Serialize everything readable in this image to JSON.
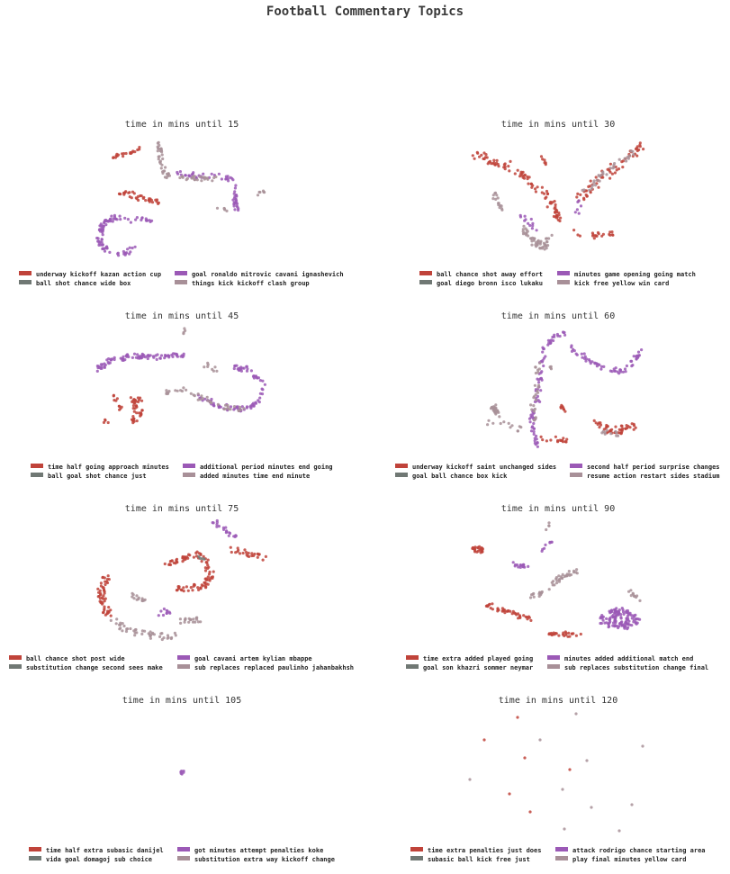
{
  "figure": {
    "title": "Football Commentary Topics"
  },
  "colors": {
    "red": "#c0433a",
    "grey": "#707874",
    "purple": "#9b59b6",
    "mauve": "#a89098"
  },
  "chart_data": [
    {
      "type": "scatter",
      "title": "time in mins until 15",
      "legend": [
        "underway kickoff kazan action cup",
        "ball shot chance wide box",
        "goal ronaldo mitrovic cavani ignashevich",
        "things kick kickoff clash group"
      ]
    },
    {
      "type": "scatter",
      "title": "time in mins until 30",
      "legend": [
        "ball chance shot away effort",
        "goal diego bronn isco lukaku",
        "minutes game opening going match",
        "kick free yellow win card"
      ]
    },
    {
      "type": "scatter",
      "title": "time in mins until 45",
      "legend": [
        "time half going approach minutes",
        "ball goal shot chance just",
        "additional period minutes end going",
        "added minutes time end minute"
      ]
    },
    {
      "type": "scatter",
      "title": "time in mins until 60",
      "legend": [
        "underway kickoff saint unchanged sides",
        "goal ball chance box kick",
        "second half period surprise changes",
        "resume action restart sides stadium"
      ]
    },
    {
      "type": "scatter",
      "title": "time in mins until 75",
      "legend": [
        "ball chance shot post wide",
        "substitution change second sees make",
        "goal cavani artem kylian mbappe",
        "sub replaces replaced paulinho jahanbakhsh"
      ]
    },
    {
      "type": "scatter",
      "title": "time in mins until 90",
      "legend": [
        "time extra added played going",
        "goal son khazri sommer neymar",
        "minutes added additional match end",
        "sub replaces substitution change final"
      ]
    },
    {
      "type": "scatter",
      "title": "time in mins until 105",
      "legend": [
        "time half extra subasic danijel",
        "vida goal domagoj sub choice",
        "got minutes attempt penalties koke",
        "substitution extra way kickoff change"
      ]
    },
    {
      "type": "scatter",
      "title": "time in mins until 120",
      "legend": [
        "time extra penalties just does",
        "subasic ball kick free just",
        "attack rodrigo chance starting area",
        "play final minutes yellow card"
      ]
    }
  ]
}
